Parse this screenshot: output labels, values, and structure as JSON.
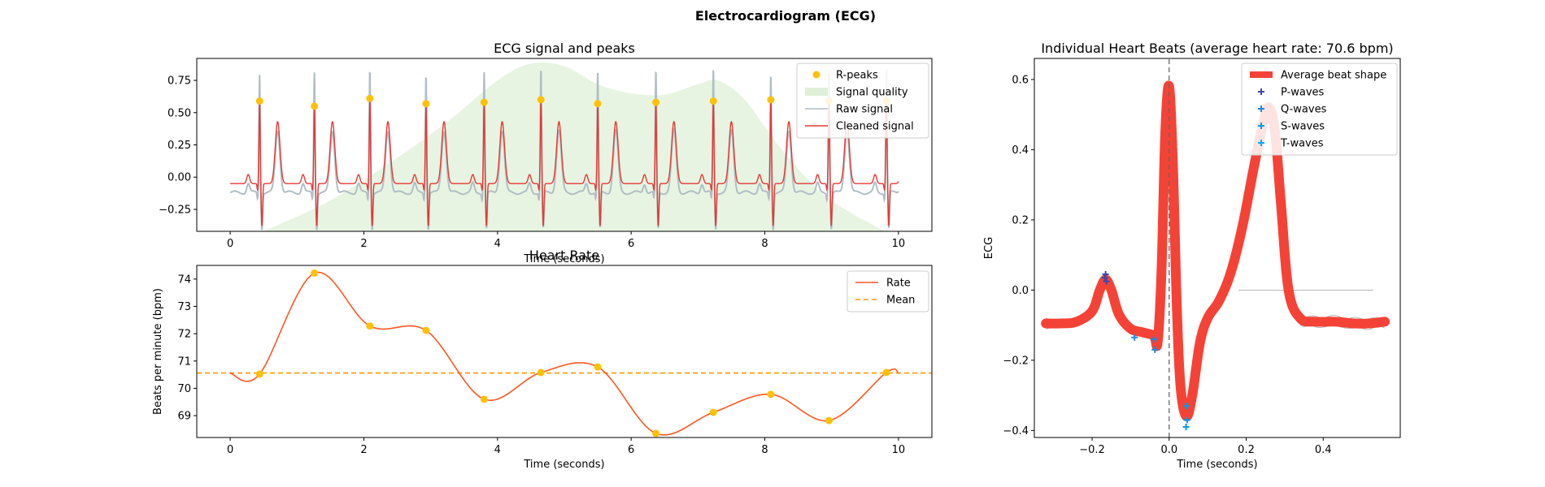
{
  "figure": {
    "suptitle": "Electrocardiogram (ECG)",
    "colors": {
      "rpeak": "#FFC107",
      "quality": "#DFF0D8",
      "raw": "#B0BEC5",
      "clean": "#E53935",
      "rate": "#FF5722",
      "mean": "#FF9800",
      "avg_beat": "#F44336",
      "p_wave": "#3949AB",
      "q_wave": "#1E88E5",
      "s_wave": "#039BE5",
      "t_wave": "#03A9F4"
    }
  },
  "chart_data": [
    {
      "id": "ecg",
      "type": "line",
      "title": "ECG signal and peaks",
      "xlabel": "Time (seconds)",
      "ylabel": "",
      "xlim": [
        -0.5,
        10.5
      ],
      "ylim": [
        -0.42,
        0.92
      ],
      "xticks": [
        0,
        2,
        4,
        6,
        8,
        10
      ],
      "xtick_labels": [
        "0",
        "2",
        "4",
        "6",
        "8",
        "10"
      ],
      "yticks": [
        -0.25,
        0.0,
        0.25,
        0.5,
        0.75
      ],
      "ytick_labels": [
        "−0.25",
        "0.00",
        "0.25",
        "0.50",
        "0.75"
      ],
      "legend": {
        "position": "upper right",
        "entries": [
          "R-peaks",
          "Signal quality",
          "Raw signal",
          "Cleaned signal"
        ]
      },
      "r_peaks": {
        "name": "R-peaks",
        "x": [
          0.44,
          1.26,
          2.09,
          2.93,
          3.8,
          4.65,
          5.5,
          6.37,
          7.23,
          8.09,
          8.96,
          9.82
        ],
        "y": [
          0.59,
          0.55,
          0.61,
          0.57,
          0.58,
          0.6,
          0.57,
          0.58,
          0.59,
          0.6,
          0.59,
          0.59
        ]
      },
      "signal_quality": {
        "name": "Signal quality",
        "x": [
          0.5,
          1.5,
          2.5,
          3.3,
          4.0,
          4.5,
          5.0,
          5.5,
          6.0,
          6.5,
          7.0,
          7.3,
          7.7,
          8.2,
          8.8,
          9.3,
          9.8
        ],
        "y": [
          -0.42,
          -0.18,
          0.15,
          0.45,
          0.75,
          0.88,
          0.86,
          0.72,
          0.65,
          0.64,
          0.72,
          0.75,
          0.6,
          0.25,
          -0.1,
          -0.28,
          -0.42
        ]
      },
      "raw_signal": {
        "name": "Raw signal",
        "t_start": 0.0,
        "t_end": 10.0,
        "baseline": -0.12,
        "r_peak_height": 0.8,
        "s_depth": -0.4
      },
      "cleaned_signal": {
        "name": "Cleaned signal",
        "t_start": 0.0,
        "t_end": 10.0,
        "baseline": -0.05,
        "s_depth": -0.38
      }
    },
    {
      "id": "rate",
      "type": "line",
      "title": "Heart Rate",
      "xlabel": "Time (seconds)",
      "ylabel": "Beats per minute (bpm)",
      "xlim": [
        -0.5,
        10.5
      ],
      "ylim": [
        68.2,
        74.5
      ],
      "xticks": [
        0,
        2,
        4,
        6,
        8,
        10
      ],
      "xtick_labels": [
        "0",
        "2",
        "4",
        "6",
        "8",
        "10"
      ],
      "yticks": [
        69,
        70,
        71,
        72,
        73,
        74
      ],
      "ytick_labels": [
        "69",
        "70",
        "71",
        "72",
        "73",
        "74"
      ],
      "legend": {
        "position": "upper right",
        "entries": [
          "Rate",
          "Mean"
        ]
      },
      "series": [
        {
          "name": "Rate",
          "x": [
            0.0,
            0.44,
            1.26,
            2.09,
            2.93,
            3.8,
            4.65,
            5.5,
            6.37,
            7.23,
            8.09,
            8.96,
            9.82,
            10.0
          ],
          "y": [
            70.55,
            70.52,
            74.22,
            72.28,
            72.12,
            69.6,
            70.58,
            70.78,
            68.35,
            69.12,
            69.78,
            68.82,
            70.58,
            70.56
          ]
        }
      ],
      "markers": {
        "x": [
          0.44,
          1.26,
          2.09,
          2.93,
          3.8,
          4.65,
          5.5,
          6.37,
          7.23,
          8.09,
          8.96,
          9.82
        ],
        "y": [
          70.52,
          74.22,
          72.28,
          72.12,
          69.6,
          70.58,
          70.78,
          68.35,
          69.12,
          69.78,
          68.82,
          70.58
        ]
      },
      "mean": {
        "name": "Mean",
        "value": 70.56
      }
    },
    {
      "id": "beats",
      "type": "line",
      "title": "Individual Heart Beats (average heart rate: 70.6 bpm)",
      "xlabel": "Time (seconds)",
      "ylabel": "ECG",
      "xlim": [
        -0.35,
        0.6
      ],
      "ylim": [
        -0.42,
        0.66
      ],
      "xticks": [
        -0.2,
        0.0,
        0.2,
        0.4
      ],
      "xtick_labels": [
        "−0.2",
        "0.0",
        "0.2",
        "0.4"
      ],
      "yticks": [
        -0.4,
        -0.2,
        0.0,
        0.2,
        0.4,
        0.6
      ],
      "ytick_labels": [
        "−0.4",
        "−0.2",
        "0.0",
        "0.2",
        "0.4",
        "0.6"
      ],
      "legend": {
        "position": "upper right",
        "entries": [
          "Average beat shape",
          "P-waves",
          "Q-waves",
          "S-waves",
          "T-waves"
        ]
      },
      "average_beat": {
        "name": "Average beat shape",
        "x": [
          -0.32,
          -0.28,
          -0.24,
          -0.2,
          -0.18,
          -0.165,
          -0.15,
          -0.13,
          -0.1,
          -0.07,
          -0.04,
          -0.03,
          -0.02,
          -0.01,
          0.0,
          0.01,
          0.02,
          0.03,
          0.045,
          0.06,
          0.08,
          0.1,
          0.13,
          0.16,
          0.19,
          0.22,
          0.245,
          0.26,
          0.275,
          0.29,
          0.31,
          0.34,
          0.38,
          0.43,
          0.48,
          0.52,
          0.56
        ],
        "y": [
          -0.095,
          -0.095,
          -0.09,
          -0.06,
          0.0,
          0.03,
          0.0,
          -0.07,
          -0.11,
          -0.12,
          -0.13,
          -0.15,
          0.05,
          0.45,
          0.58,
          0.35,
          -0.05,
          -0.28,
          -0.36,
          -0.3,
          -0.15,
          -0.08,
          -0.03,
          0.05,
          0.18,
          0.35,
          0.48,
          0.52,
          0.45,
          0.25,
          0.0,
          -0.08,
          -0.09,
          -0.09,
          -0.095,
          -0.095,
          -0.09
        ]
      },
      "p_waves": {
        "name": "P-waves",
        "x": [
          -0.165,
          -0.167,
          -0.163
        ],
        "y": [
          0.045,
          0.035,
          0.025
        ]
      },
      "q_waves": {
        "name": "Q-waves",
        "x": [
          -0.09,
          -0.04,
          -0.037
        ],
        "y": [
          -0.135,
          -0.14,
          -0.17
        ]
      },
      "s_waves": {
        "name": "S-waves",
        "x": [
          0.045,
          0.047,
          0.044
        ],
        "y": [
          -0.33,
          -0.37,
          -0.39
        ]
      },
      "t_waves": {
        "name": "T-waves",
        "x": [],
        "y": []
      },
      "vline_x": 0.0,
      "hline": {
        "x": [
          0.18,
          0.53
        ],
        "y": 0.0
      }
    }
  ]
}
